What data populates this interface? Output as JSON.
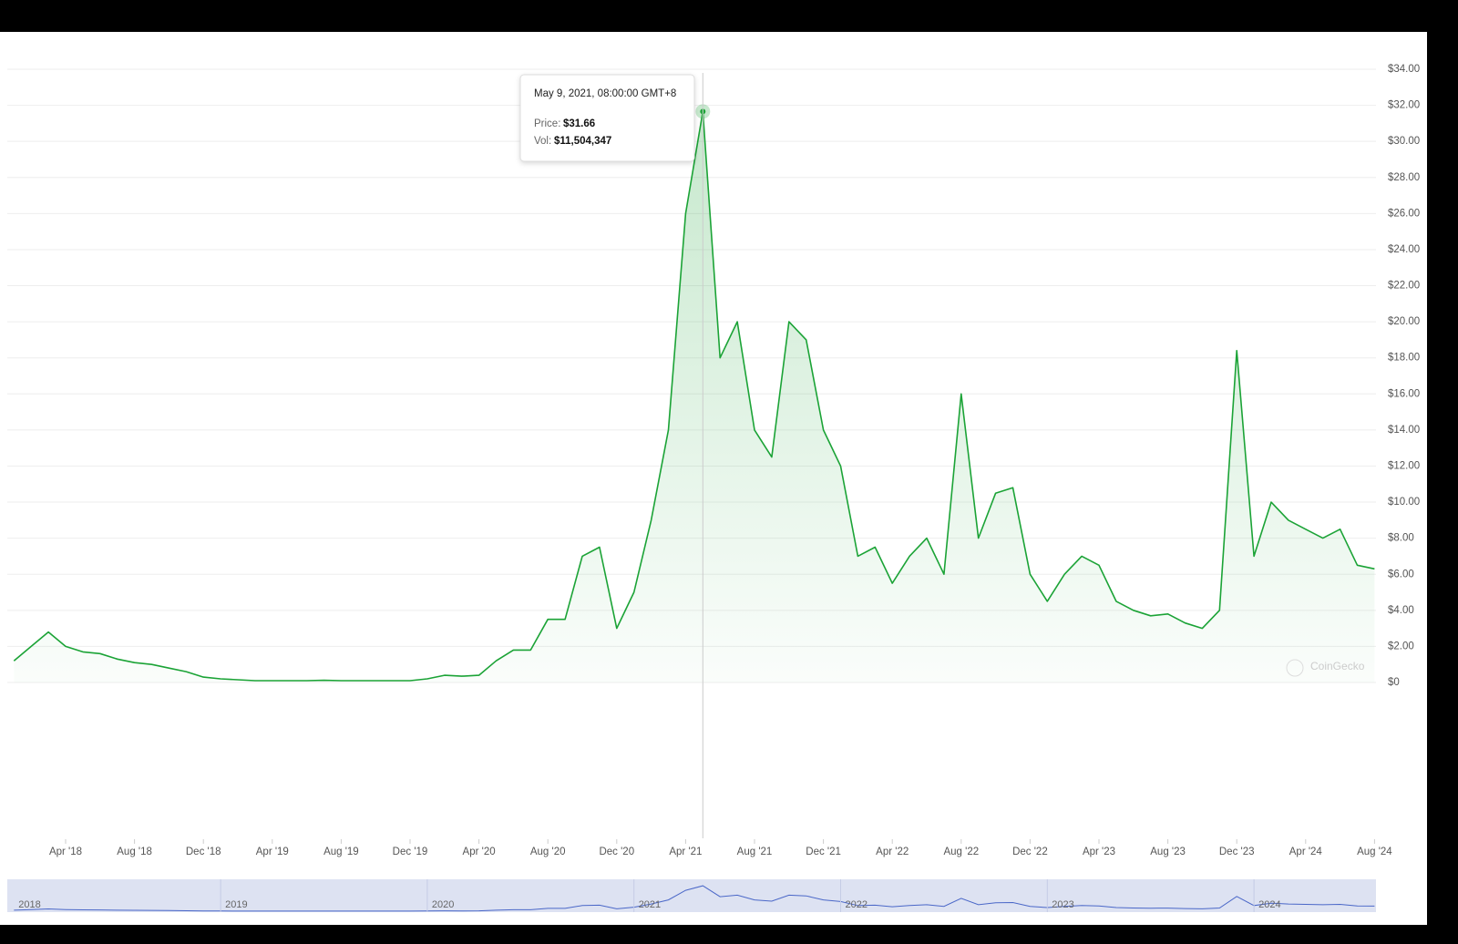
{
  "chart_data": {
    "type": "line",
    "x": [
      "2018-01",
      "2018-02",
      "2018-03",
      "2018-04",
      "2018-05",
      "2018-06",
      "2018-07",
      "2018-08",
      "2018-09",
      "2018-10",
      "2018-11",
      "2018-12",
      "2019-01",
      "2019-02",
      "2019-03",
      "2019-04",
      "2019-05",
      "2019-06",
      "2019-07",
      "2019-08",
      "2019-09",
      "2019-10",
      "2019-11",
      "2019-12",
      "2020-01",
      "2020-02",
      "2020-03",
      "2020-04",
      "2020-05",
      "2020-06",
      "2020-07",
      "2020-08",
      "2020-09",
      "2020-10",
      "2020-11",
      "2020-12",
      "2021-01",
      "2021-02",
      "2021-03",
      "2021-04",
      "2021-05",
      "2021-06",
      "2021-07",
      "2021-08",
      "2021-09",
      "2021-10",
      "2021-11",
      "2021-12",
      "2022-01",
      "2022-02",
      "2022-03",
      "2022-04",
      "2022-05",
      "2022-06",
      "2022-07",
      "2022-08",
      "2022-09",
      "2022-10",
      "2022-11",
      "2022-12",
      "2023-01",
      "2023-02",
      "2023-03",
      "2023-04",
      "2023-05",
      "2023-06",
      "2023-07",
      "2023-08",
      "2023-09",
      "2023-10",
      "2023-11",
      "2023-12",
      "2024-01",
      "2024-02",
      "2024-03",
      "2024-04",
      "2024-05",
      "2024-06",
      "2024-07",
      "2024-08"
    ],
    "values": [
      1.2,
      2.0,
      2.8,
      2.0,
      1.7,
      1.6,
      1.3,
      1.1,
      1.0,
      0.8,
      0.6,
      0.3,
      0.2,
      0.15,
      0.1,
      0.1,
      0.1,
      0.1,
      0.12,
      0.1,
      0.1,
      0.1,
      0.1,
      0.1,
      0.2,
      0.4,
      0.35,
      0.4,
      1.2,
      1.8,
      1.8,
      3.5,
      3.5,
      7.0,
      7.5,
      3.0,
      5.0,
      9.0,
      14.0,
      26.0,
      31.66,
      18.0,
      20.0,
      14.0,
      12.5,
      20.0,
      19.0,
      14.0,
      12.0,
      7.0,
      7.5,
      5.5,
      7.0,
      8.0,
      6.0,
      16.0,
      8.0,
      10.5,
      10.8,
      6.0,
      4.5,
      6.0,
      7.0,
      6.5,
      4.5,
      4.0,
      3.7,
      3.8,
      3.3,
      3.0,
      4.0,
      18.4,
      7.0,
      10.0,
      9.0,
      8.5,
      8.0,
      8.5,
      6.5,
      6.3
    ],
    "color": "#1ba336",
    "ylim": [
      0,
      34
    ],
    "yticks": [
      {
        "value": 0,
        "label": "$0"
      },
      {
        "value": 2,
        "label": "$2.00"
      },
      {
        "value": 4,
        "label": "$4.00"
      },
      {
        "value": 6,
        "label": "$6.00"
      },
      {
        "value": 8,
        "label": "$8.00"
      },
      {
        "value": 10,
        "label": "$10.00"
      },
      {
        "value": 12,
        "label": "$12.00"
      },
      {
        "value": 14,
        "label": "$14.00"
      },
      {
        "value": 16,
        "label": "$16.00"
      },
      {
        "value": 18,
        "label": "$18.00"
      },
      {
        "value": 20,
        "label": "$20.00"
      },
      {
        "value": 22,
        "label": "$22.00"
      },
      {
        "value": 24,
        "label": "$24.00"
      },
      {
        "value": 26,
        "label": "$26.00"
      },
      {
        "value": 28,
        "label": "$28.00"
      },
      {
        "value": 30,
        "label": "$30.00"
      },
      {
        "value": 32,
        "label": "$32.00"
      },
      {
        "value": 34,
        "label": "$34.00"
      }
    ],
    "xticks": [
      {
        "value": "2018-04",
        "label": "Apr '18"
      },
      {
        "value": "2018-08",
        "label": "Aug '18"
      },
      {
        "value": "2018-12",
        "label": "Dec '18"
      },
      {
        "value": "2019-04",
        "label": "Apr '19"
      },
      {
        "value": "2019-08",
        "label": "Aug '19"
      },
      {
        "value": "2019-12",
        "label": "Dec '19"
      },
      {
        "value": "2020-04",
        "label": "Apr '20"
      },
      {
        "value": "2020-08",
        "label": "Aug '20"
      },
      {
        "value": "2020-12",
        "label": "Dec '20"
      },
      {
        "value": "2021-04",
        "label": "Apr '21"
      },
      {
        "value": "2021-08",
        "label": "Aug '21"
      },
      {
        "value": "2021-12",
        "label": "Dec '21"
      },
      {
        "value": "2022-04",
        "label": "Apr '22"
      },
      {
        "value": "2022-08",
        "label": "Aug '22"
      },
      {
        "value": "2022-12",
        "label": "Dec '22"
      },
      {
        "value": "2023-04",
        "label": "Apr '23"
      },
      {
        "value": "2023-08",
        "label": "Aug '23"
      },
      {
        "value": "2023-12",
        "label": "Dec '23"
      },
      {
        "value": "2024-04",
        "label": "Apr '24"
      },
      {
        "value": "2024-08",
        "label": "Aug '24"
      }
    ],
    "grid": true,
    "tooltip": {
      "date": "May 9, 2021, 08:00:00 GMT+8",
      "price_label": "Price:",
      "price": "$31.66",
      "vol_label": "Vol:",
      "vol": "$11,504,347"
    },
    "watermark": "CoinGecko",
    "navigator_labels": [
      "2018",
      "2019",
      "2020",
      "2021",
      "2022",
      "2023",
      "2024"
    ]
  }
}
